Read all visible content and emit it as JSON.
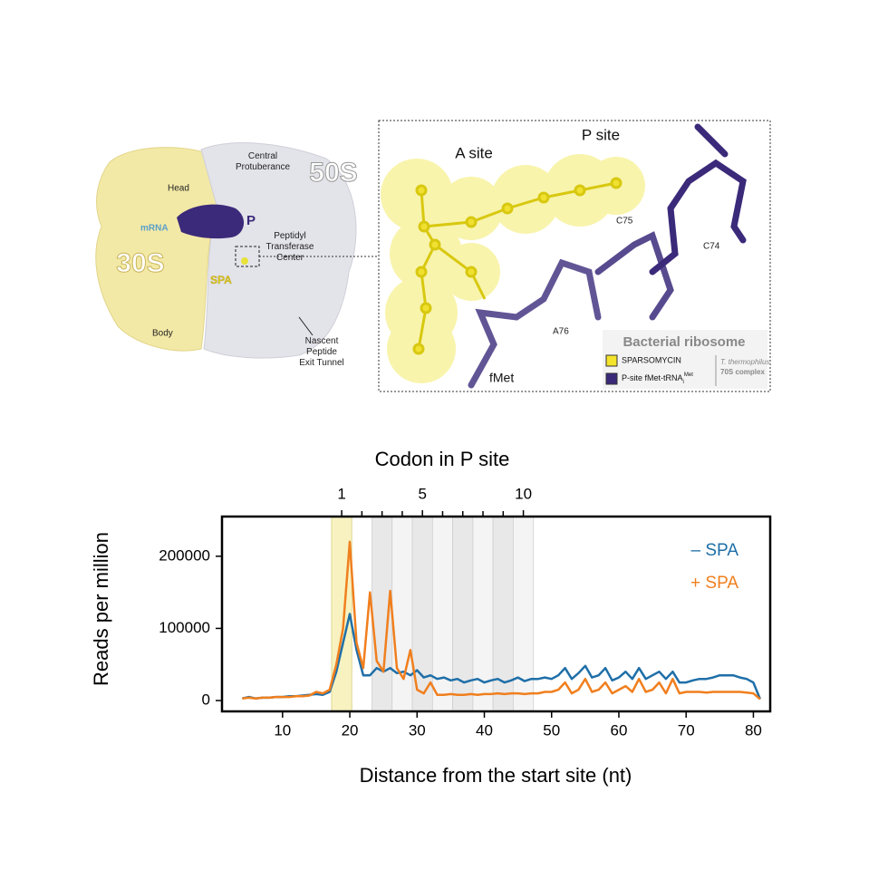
{
  "illustration": {
    "central_protuberance": [
      "Central",
      "Protuberance"
    ],
    "label_50s": "50S",
    "head": "Head",
    "mrna": "mRNA",
    "p": "P",
    "label_30s": "30S",
    "spa": "SPA",
    "ptc": [
      "Peptidyl",
      "Transferase",
      "Center"
    ],
    "body": "Body",
    "exit_tunnel": [
      "Nascent",
      "Peptide",
      "Exit Tunnel"
    ],
    "a_site": "A site",
    "p_site": "P site",
    "c75": "C75",
    "c74": "C74",
    "a76": "A76",
    "fmet": "fMet",
    "legend_title": "Bacterial ribosome",
    "legend_spa": "SPARSOMYCIN",
    "legend_trna": {
      "text": "P-site fMet-tRNA",
      "sub": "i",
      "sup": "Met"
    },
    "organism": [
      "T. thermophilus",
      "70S complex"
    ]
  },
  "chart_data": {
    "type": "line",
    "title": "Codon in P site",
    "x_label": "Distance from the start site (nt)",
    "y_label": "Reads per million",
    "x": [
      4,
      5,
      6,
      7,
      8,
      9,
      10,
      11,
      12,
      13,
      14,
      15,
      16,
      17,
      18,
      19,
      20,
      21,
      22,
      23,
      24,
      25,
      26,
      27,
      28,
      29,
      30,
      31,
      32,
      33,
      34,
      35,
      36,
      37,
      38,
      39,
      40,
      41,
      42,
      43,
      44,
      45,
      46,
      47,
      48,
      49,
      50,
      51,
      52,
      53,
      54,
      55,
      56,
      57,
      58,
      59,
      60,
      61,
      62,
      63,
      64,
      65,
      66,
      67,
      68,
      69,
      70,
      71,
      72,
      73,
      74,
      75,
      76,
      77,
      78,
      79,
      80,
      81
    ],
    "series": [
      {
        "name": "– SPA",
        "color": "#1f6fa8",
        "values": [
          3000,
          5000,
          3000,
          4000,
          4000,
          5000,
          5000,
          6000,
          6000,
          7000,
          8000,
          9000,
          8000,
          12000,
          40000,
          80000,
          120000,
          70000,
          35000,
          35000,
          45000,
          40000,
          45000,
          38000,
          40000,
          35000,
          42000,
          32000,
          35000,
          30000,
          32000,
          28000,
          30000,
          25000,
          28000,
          30000,
          25000,
          28000,
          30000,
          25000,
          28000,
          32000,
          27000,
          30000,
          30000,
          32000,
          30000,
          35000,
          45000,
          30000,
          38000,
          48000,
          32000,
          35000,
          45000,
          28000,
          32000,
          40000,
          30000,
          45000,
          30000,
          35000,
          40000,
          30000,
          40000,
          25000,
          25000,
          28000,
          30000,
          30000,
          32000,
          35000,
          35000,
          35000,
          32000,
          30000,
          25000,
          2000
        ]
      },
      {
        "name": "+ SPA",
        "color": "#f07f1e",
        "values": [
          3000,
          4000,
          3000,
          4000,
          4000,
          5000,
          5000,
          5000,
          6000,
          6000,
          7000,
          12000,
          10000,
          15000,
          50000,
          100000,
          220000,
          80000,
          45000,
          150000,
          55000,
          40000,
          152000,
          45000,
          30000,
          70000,
          15000,
          10000,
          25000,
          8000,
          8000,
          9000,
          8000,
          8000,
          9000,
          8000,
          9000,
          9000,
          10000,
          9000,
          10000,
          10000,
          9000,
          10000,
          10000,
          12000,
          12000,
          15000,
          25000,
          10000,
          15000,
          30000,
          12000,
          15000,
          25000,
          10000,
          15000,
          20000,
          12000,
          30000,
          12000,
          15000,
          25000,
          10000,
          30000,
          10000,
          12000,
          12000,
          12000,
          11000,
          12000,
          12000,
          12000,
          12000,
          12000,
          11000,
          10000,
          2000
        ]
      }
    ],
    "xlim": [
      1,
      82.5
    ],
    "xticks": [
      10,
      20,
      30,
      40,
      50,
      60,
      70,
      80
    ],
    "ylim": [
      -15000,
      255000
    ],
    "yticks": [
      0,
      100000,
      200000
    ],
    "x2lim": [
      -4.93,
      22.23
    ],
    "x2ticks": [
      1,
      5,
      10
    ],
    "x2minorticks": [
      2,
      3,
      4,
      6,
      7,
      8,
      9
    ],
    "highlight_codon": 1,
    "highlight_color": "#f7f2c0",
    "shaded_codons": [
      3,
      4,
      5,
      6,
      7,
      8,
      9,
      10
    ],
    "legend": "top-right"
  }
}
